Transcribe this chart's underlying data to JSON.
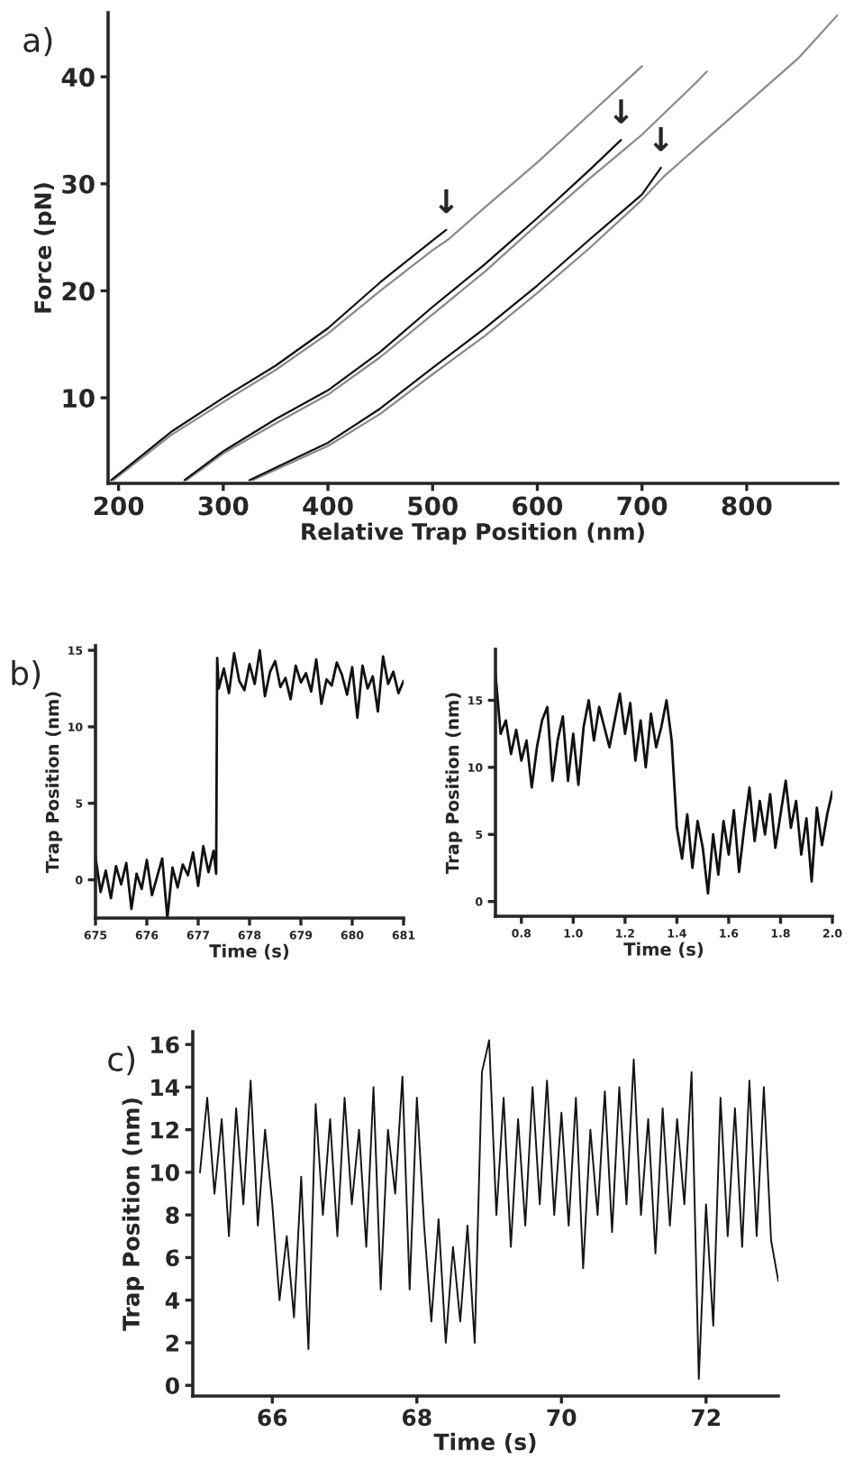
{
  "chart_data": [
    {
      "type": "line",
      "title": "a)",
      "xlabel": "Relative Trap Position (nm)",
      "ylabel": "Force (pN)",
      "xlim": [
        190,
        887
      ],
      "ylim": [
        2,
        46
      ],
      "xticks": [
        200,
        300,
        400,
        500,
        600,
        700,
        800
      ],
      "yticks": [
        10,
        20,
        30,
        40
      ],
      "series": [
        {
          "color": "#8a8a8a",
          "x": [
            195,
            250,
            300,
            350,
            400,
            450,
            500,
            515,
            550,
            600,
            650,
            700
          ],
          "values": [
            2.3,
            6.5,
            9.6,
            12.6,
            16,
            20,
            23.8,
            24.8,
            27.8,
            32,
            36.5,
            41
          ]
        },
        {
          "color": "#111111",
          "x": [
            193,
            250,
            300,
            350,
            400,
            450,
            500,
            513
          ],
          "values": [
            2.3,
            6.8,
            10,
            13,
            16.5,
            20.8,
            24.7,
            25.7
          ]
        },
        {
          "color": "#8a8a8a",
          "x": [
            265,
            300,
            350,
            400,
            450,
            500,
            550,
            600,
            650,
            683,
            700,
            750,
            762
          ],
          "values": [
            2.3,
            4.8,
            7.6,
            10.3,
            13.8,
            17.8,
            21.8,
            26.2,
            30.5,
            33.2,
            34.6,
            39.3,
            40.5
          ]
        },
        {
          "color": "#111111",
          "x": [
            263,
            300,
            350,
            400,
            450,
            500,
            550,
            600,
            650,
            680
          ],
          "values": [
            2.3,
            5,
            8,
            10.7,
            14.3,
            18.5,
            22.5,
            26.8,
            31.3,
            34.1
          ]
        },
        {
          "color": "#8a8a8a",
          "x": [
            328,
            400,
            450,
            500,
            550,
            600,
            650,
            700,
            720,
            750,
            800,
            850,
            887
          ],
          "values": [
            2.3,
            5.5,
            8.5,
            12.2,
            15.8,
            19.8,
            24,
            28.5,
            30.6,
            33.2,
            37.5,
            41.8,
            45.8
          ]
        },
        {
          "color": "#111111",
          "x": [
            325,
            400,
            450,
            500,
            550,
            600,
            650,
            700,
            718
          ],
          "values": [
            2.3,
            5.8,
            9,
            12.8,
            16.5,
            20.5,
            24.8,
            29,
            31.5
          ]
        }
      ],
      "annotations": [
        {
          "text": "↓",
          "x": 513,
          "y": 25.7
        },
        {
          "text": "↓",
          "x": 680,
          "y": 34.1
        },
        {
          "text": "↓",
          "x": 718,
          "y": 31.5
        }
      ]
    },
    {
      "type": "line",
      "title": "b)",
      "xlabel": "Time (s)",
      "ylabel": "Trap Position (nm)",
      "xlim": [
        675,
        681
      ],
      "ylim": [
        -2.5,
        15.3
      ],
      "xticks": [
        675,
        676,
        677,
        678,
        679,
        680,
        681
      ],
      "yticks": [
        0,
        5,
        10,
        15
      ],
      "series": [
        {
          "color": "#111111",
          "x": [
            675.0,
            675.1,
            675.2,
            675.3,
            675.4,
            675.5,
            675.6,
            675.7,
            675.8,
            675.9,
            676.0,
            676.1,
            676.2,
            676.3,
            676.4,
            676.5,
            676.6,
            676.7,
            676.8,
            676.9,
            677.0,
            677.1,
            677.2,
            677.3,
            677.35,
            677.37,
            677.4,
            677.5,
            677.6,
            677.7,
            677.8,
            677.9,
            678.0,
            678.1,
            678.2,
            678.3,
            678.4,
            678.5,
            678.6,
            678.7,
            678.8,
            678.9,
            679.0,
            679.1,
            679.2,
            679.3,
            679.4,
            679.5,
            679.6,
            679.7,
            679.8,
            679.9,
            680.0,
            680.1,
            680.2,
            680.3,
            680.4,
            680.5,
            680.6,
            680.7,
            680.8,
            680.9,
            681.0
          ],
          "values": [
            1.5,
            -0.8,
            0.6,
            -1.2,
            0.9,
            -0.3,
            1.1,
            -1.9,
            0.4,
            -0.6,
            1.3,
            -1.0,
            0.2,
            1.4,
            -2.5,
            0.8,
            -0.5,
            1.0,
            0.3,
            1.8,
            -0.4,
            2.2,
            0.5,
            1.9,
            0.4,
            14.5,
            12.5,
            13.8,
            12.2,
            14.8,
            13.0,
            12.4,
            14.1,
            12.8,
            15.0,
            12.0,
            13.6,
            14.3,
            12.6,
            13.2,
            11.8,
            14.0,
            12.9,
            13.5,
            12.3,
            14.4,
            11.5,
            13.1,
            12.7,
            14.2,
            13.4,
            12.1,
            13.9,
            10.6,
            14.0,
            12.5,
            13.3,
            11.0,
            14.6,
            12.8,
            13.6,
            12.2,
            13.0
          ]
        }
      ]
    },
    {
      "type": "line",
      "xlabel": "Time (s)",
      "ylabel": "Trap Position (nm)",
      "xlim": [
        0.7,
        2.0
      ],
      "ylim": [
        -1.1,
        18.8
      ],
      "xticks": [
        {
          "value": 0.8,
          "label": "0.8"
        },
        {
          "value": 1,
          "label": "1.0"
        },
        {
          "value": 1.2,
          "label": "1.2"
        },
        {
          "value": 1.4,
          "label": "1.4"
        },
        {
          "value": 1.6,
          "label": "1.6"
        },
        {
          "value": 1.8,
          "label": "1.8"
        },
        {
          "value": 2,
          "label": "2.0"
        }
      ],
      "yticks": [
        0,
        5,
        10,
        15
      ],
      "series": [
        {
          "color": "#111111",
          "x": [
            0.7,
            0.72,
            0.74,
            0.76,
            0.78,
            0.8,
            0.82,
            0.84,
            0.86,
            0.88,
            0.9,
            0.92,
            0.94,
            0.96,
            0.98,
            1.0,
            1.02,
            1.04,
            1.06,
            1.08,
            1.1,
            1.12,
            1.14,
            1.16,
            1.18,
            1.2,
            1.22,
            1.24,
            1.26,
            1.28,
            1.3,
            1.32,
            1.34,
            1.36,
            1.38,
            1.4,
            1.42,
            1.44,
            1.46,
            1.48,
            1.5,
            1.52,
            1.54,
            1.56,
            1.58,
            1.6,
            1.62,
            1.64,
            1.66,
            1.68,
            1.7,
            1.72,
            1.74,
            1.76,
            1.78,
            1.8,
            1.82,
            1.84,
            1.86,
            1.88,
            1.9,
            1.92,
            1.94,
            1.96,
            1.98,
            2.0
          ],
          "values": [
            17,
            12.5,
            13.5,
            11,
            12.8,
            10.5,
            12,
            8.5,
            11.5,
            13.5,
            14.5,
            9,
            12,
            13.8,
            9,
            12.5,
            8.7,
            13,
            15,
            12,
            14.5,
            13,
            11.5,
            13.5,
            15.5,
            12.5,
            14.8,
            10.5,
            13.5,
            10,
            14,
            11.5,
            13,
            15,
            12,
            5.5,
            3.2,
            6.5,
            2.5,
            6,
            4,
            0.6,
            5,
            2,
            6,
            3.5,
            6.8,
            2.2,
            5.5,
            8.5,
            4.5,
            7.5,
            5,
            8,
            4,
            6.5,
            9,
            5.5,
            7.5,
            3.5,
            6.2,
            1.5,
            7,
            4.2,
            6.5,
            8.2
          ]
        }
      ]
    },
    {
      "type": "line",
      "title": "c)",
      "xlabel": "Time (s)",
      "ylabel": "Trap Position (nm)",
      "xlim": [
        64.9,
        73.0
      ],
      "ylim": [
        -0.5,
        16.6
      ],
      "xticks": [
        66,
        68,
        70,
        72
      ],
      "yticks": [
        0,
        2,
        4,
        6,
        8,
        10,
        12,
        14,
        16
      ],
      "series": [
        {
          "color": "#151515",
          "x": [
            65.0,
            65.1,
            65.2,
            65.3,
            65.4,
            65.5,
            65.6,
            65.7,
            65.8,
            65.9,
            66.0,
            66.1,
            66.2,
            66.3,
            66.4,
            66.5,
            66.6,
            66.7,
            66.8,
            66.9,
            67.0,
            67.1,
            67.2,
            67.3,
            67.4,
            67.5,
            67.6,
            67.7,
            67.8,
            67.9,
            68.0,
            68.1,
            68.2,
            68.3,
            68.4,
            68.5,
            68.6,
            68.7,
            68.8,
            68.9,
            69.0,
            69.1,
            69.2,
            69.3,
            69.4,
            69.5,
            69.6,
            69.7,
            69.8,
            69.9,
            70.0,
            70.1,
            70.2,
            70.3,
            70.4,
            70.5,
            70.6,
            70.7,
            70.8,
            70.9,
            71.0,
            71.1,
            71.2,
            71.3,
            71.4,
            71.5,
            71.6,
            71.7,
            71.8,
            71.9,
            72.0,
            72.1,
            72.2,
            72.3,
            72.4,
            72.5,
            72.6,
            72.7,
            72.8,
            72.9,
            73.0
          ],
          "values": [
            10,
            13.5,
            9,
            12.5,
            7,
            13,
            8.5,
            14.3,
            7.5,
            12,
            8.5,
            4,
            7,
            3.2,
            9.8,
            1.7,
            13.2,
            8,
            12.5,
            7,
            13.5,
            8.5,
            12,
            6.5,
            14,
            4.5,
            12,
            9,
            14.5,
            4.5,
            13.5,
            7.5,
            3,
            7.8,
            2,
            6.5,
            3,
            7.5,
            2,
            14.7,
            16.2,
            8,
            13.5,
            6.5,
            12.5,
            7.5,
            14,
            8.5,
            14.3,
            8,
            12.8,
            7.5,
            13.5,
            5.5,
            12,
            8,
            13.8,
            7.2,
            14,
            8.5,
            15.3,
            8,
            12.5,
            6.2,
            13,
            7.5,
            12.5,
            8.5,
            14.7,
            0.3,
            8.5,
            2.8,
            13.5,
            7,
            13,
            6.5,
            14.3,
            7,
            14,
            6.8,
            4.9
          ]
        }
      ]
    }
  ]
}
